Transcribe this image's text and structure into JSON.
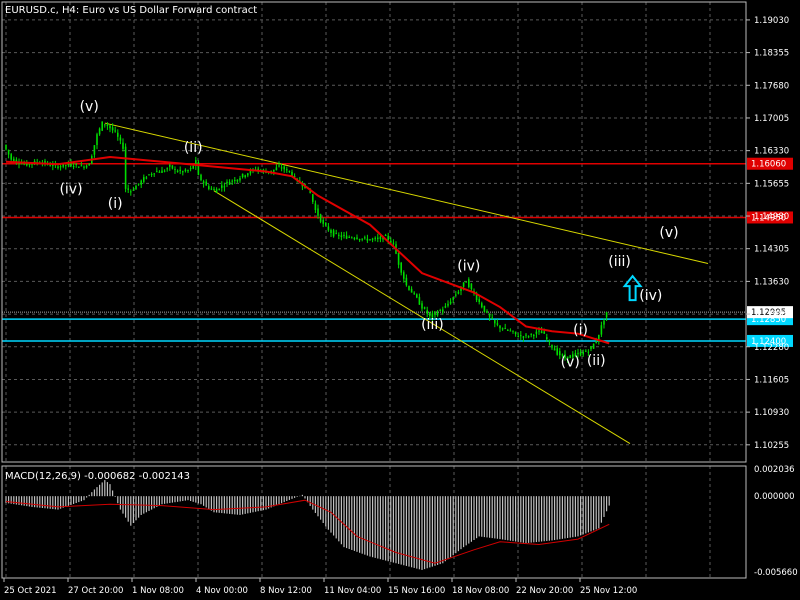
{
  "window": {
    "title": "EURUSD.c, H4:  Euro vs US Dollar Forward contract",
    "indicator_title": "MACD(12,26,9) -0.000682 -0.002143"
  },
  "colors": {
    "background": "#000000",
    "grid": "#5a5a5a",
    "candle": "#00dd00",
    "ma": "#e00000",
    "hline_red": "#e00000",
    "hline_cyan": "#00d8ff",
    "trendline": "#d8d800",
    "macd_hist": "#c0c0c0",
    "macd_signal": "#d00000",
    "arrow": "#00d8ff"
  },
  "chart_data": [
    {
      "type": "candlestick",
      "title": "EURUSD.c, H4:  Euro vs US Dollar Forward contract",
      "ylim": [
        1.099,
        1.194
      ],
      "price_axis_ticks": [
        "1.19030",
        "1.18355",
        "1.17680",
        "1.17005",
        "1.16330",
        "1.15655",
        "1.14980",
        "1.14305",
        "1.13630",
        "1.12955",
        "1.12280",
        "1.11605",
        "1.10930",
        "1.10255"
      ],
      "time_axis_ticks": [
        "25 Oct 2021",
        "27 Oct 20:00",
        "1 Nov 08:00",
        "4 Nov 00:00",
        "8 Nov 12:00",
        "11 Nov 04:00",
        "15 Nov 16:00",
        "18 Nov 08:00",
        "22 Nov 20:00",
        "25 Nov 12:00"
      ],
      "price_path": [
        [
          0,
          1.1645
        ],
        [
          3,
          1.1615
        ],
        [
          8,
          1.1605
        ],
        [
          14,
          1.161
        ],
        [
          20,
          1.16
        ],
        [
          26,
          1.1605
        ],
        [
          30,
          1.16
        ],
        [
          33,
          1.1605
        ],
        [
          36,
          1.1665
        ],
        [
          38,
          1.169
        ],
        [
          40,
          1.1685
        ],
        [
          43,
          1.167
        ],
        [
          46,
          1.164
        ],
        [
          47,
          1.1555
        ],
        [
          49,
          1.155
        ],
        [
          52,
          1.1565
        ],
        [
          55,
          1.158
        ],
        [
          58,
          1.159
        ],
        [
          61,
          1.159
        ],
        [
          64,
          1.16
        ],
        [
          67,
          1.159
        ],
        [
          70,
          1.159
        ],
        [
          72,
          1.1595
        ],
        [
          74,
          1.161
        ],
        [
          75,
          1.158
        ],
        [
          78,
          1.156
        ],
        [
          81,
          1.155
        ],
        [
          84,
          1.156
        ],
        [
          87,
          1.157
        ],
        [
          90,
          1.1575
        ],
        [
          93,
          1.1585
        ],
        [
          97,
          1.1595
        ],
        [
          100,
          1.159
        ],
        [
          103,
          1.159
        ],
        [
          106,
          1.16
        ],
        [
          110,
          1.159
        ],
        [
          113,
          1.157
        ],
        [
          116,
          1.156
        ],
        [
          118,
          1.1545
        ],
        [
          120,
          1.151
        ],
        [
          123,
          1.148
        ],
        [
          127,
          1.146
        ],
        [
          131,
          1.1455
        ],
        [
          135,
          1.1455
        ],
        [
          139,
          1.145
        ],
        [
          143,
          1.145
        ],
        [
          147,
          1.1455
        ],
        [
          150,
          1.144
        ],
        [
          152,
          1.14
        ],
        [
          155,
          1.1355
        ],
        [
          158,
          1.1335
        ],
        [
          161,
          1.131
        ],
        [
          164,
          1.129
        ],
        [
          167,
          1.13
        ],
        [
          170,
          1.131
        ],
        [
          173,
          1.133
        ],
        [
          176,
          1.135
        ],
        [
          178,
          1.1365
        ],
        [
          180,
          1.1345
        ],
        [
          183,
          1.132
        ],
        [
          186,
          1.1295
        ],
        [
          189,
          1.1275
        ],
        [
          192,
          1.1265
        ],
        [
          195,
          1.126
        ],
        [
          198,
          1.125
        ],
        [
          201,
          1.125
        ],
        [
          204,
          1.1255
        ],
        [
          207,
          1.126
        ],
        [
          210,
          1.1235
        ],
        [
          213,
          1.1215
        ],
        [
          216,
          1.1205
        ],
        [
          219,
          1.121
        ],
        [
          222,
          1.1215
        ],
        [
          225,
          1.122
        ],
        [
          228,
          1.124
        ],
        [
          232,
          1.13
        ]
      ],
      "moving_average": [
        [
          0,
          1.161
        ],
        [
          20,
          1.1605
        ],
        [
          40,
          1.162
        ],
        [
          60,
          1.161
        ],
        [
          80,
          1.16
        ],
        [
          100,
          1.159
        ],
        [
          110,
          1.158
        ],
        [
          120,
          1.154
        ],
        [
          130,
          1.151
        ],
        [
          140,
          1.148
        ],
        [
          150,
          1.143
        ],
        [
          160,
          1.138
        ],
        [
          170,
          1.136
        ],
        [
          180,
          1.134
        ],
        [
          190,
          1.131
        ],
        [
          200,
          1.127
        ],
        [
          210,
          1.126
        ],
        [
          220,
          1.1255
        ],
        [
          232,
          1.1235
        ]
      ],
      "trendlines": [
        {
          "from": [
            38,
            1.169
          ],
          "to": [
            270,
            1.14
          ]
        },
        {
          "from": [
            80,
            1.155
          ],
          "to": [
            240,
            1.1028
          ]
        }
      ],
      "horizontal_lines": [
        {
          "price": 1.1606,
          "label": "1.16060",
          "color": "red"
        },
        {
          "price": 1.1495,
          "label": "1.14950",
          "color": "red"
        },
        {
          "price": 1.1285,
          "label": "1.12850",
          "color": "cyan"
        },
        {
          "price": 1.124,
          "label": "1.12400",
          "color": "cyan"
        }
      ],
      "current_price": {
        "price": 1.12995,
        "label": "1.12995"
      },
      "wave_labels": [
        {
          "text": "(v)",
          "bar": 32,
          "price": 1.1715
        },
        {
          "text": "(iv)",
          "bar": 25,
          "price": 1.1545
        },
        {
          "text": "(i)",
          "bar": 42,
          "price": 1.1515
        },
        {
          "text": "(ii)",
          "bar": 72,
          "price": 1.163
        },
        {
          "text": "(iii)",
          "bar": 164,
          "price": 1.1265
        },
        {
          "text": "(iv)",
          "bar": 178,
          "price": 1.1385
        },
        {
          "text": "(i)",
          "bar": 221,
          "price": 1.1253
        },
        {
          "text": "(ii)",
          "bar": 227,
          "price": 1.119
        },
        {
          "text": "(v)",
          "bar": 217,
          "price": 1.1187
        },
        {
          "text": "(iii)",
          "bar": 236,
          "price": 1.1395
        },
        {
          "text": "(iv)",
          "bar": 248,
          "price": 1.1325
        },
        {
          "text": "(v)",
          "bar": 255,
          "price": 1.1455
        }
      ],
      "arrow": {
        "direction": "up",
        "bar": 241,
        "price": 1.1345
      }
    },
    {
      "type": "bar",
      "title": "MACD(12,26,9) -0.000682 -0.002143",
      "ylim": [
        -0.0061,
        0.00225
      ],
      "axis_ticks": [
        "0.002036",
        "0.000000",
        "-0.005660"
      ],
      "histogram": [
        [
          0,
          -0.0005
        ],
        [
          10,
          -0.0008
        ],
        [
          20,
          -0.001
        ],
        [
          30,
          -0.0003
        ],
        [
          34,
          0.0005
        ],
        [
          38,
          0.0012
        ],
        [
          40,
          0.0009
        ],
        [
          44,
          -0.001
        ],
        [
          48,
          -0.0022
        ],
        [
          52,
          -0.0014
        ],
        [
          60,
          -0.0006
        ],
        [
          70,
          -0.0003
        ],
        [
          75,
          -0.0006
        ],
        [
          80,
          -0.0012
        ],
        [
          90,
          -0.0014
        ],
        [
          100,
          -0.001
        ],
        [
          110,
          -0.0002
        ],
        [
          114,
          0.0001
        ],
        [
          118,
          -0.001
        ],
        [
          124,
          -0.0025
        ],
        [
          130,
          -0.0038
        ],
        [
          140,
          -0.0045
        ],
        [
          150,
          -0.005
        ],
        [
          160,
          -0.0055
        ],
        [
          168,
          -0.005
        ],
        [
          176,
          -0.0038
        ],
        [
          182,
          -0.003
        ],
        [
          190,
          -0.0032
        ],
        [
          200,
          -0.0035
        ],
        [
          210,
          -0.0033
        ],
        [
          220,
          -0.003
        ],
        [
          228,
          -0.0024
        ],
        [
          232,
          -0.0007
        ]
      ],
      "signal": [
        [
          0,
          -0.0004
        ],
        [
          20,
          -0.0008
        ],
        [
          40,
          -0.0006
        ],
        [
          60,
          -0.0007
        ],
        [
          80,
          -0.001
        ],
        [
          100,
          -0.0008
        ],
        [
          115,
          -0.0003
        ],
        [
          125,
          -0.0012
        ],
        [
          135,
          -0.003
        ],
        [
          150,
          -0.0042
        ],
        [
          165,
          -0.005
        ],
        [
          180,
          -0.004
        ],
        [
          190,
          -0.0034
        ],
        [
          205,
          -0.0036
        ],
        [
          220,
          -0.0032
        ],
        [
          232,
          -0.0021
        ]
      ]
    }
  ]
}
